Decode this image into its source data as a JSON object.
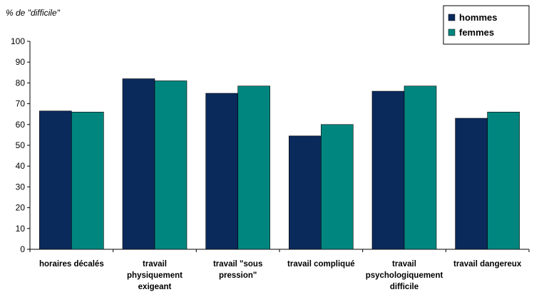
{
  "chart_data": {
    "type": "bar",
    "title": "% de \"difficile\"",
    "categories": [
      "horaires décalés",
      "travail physiquement exigeant",
      "travail \"sous pression\"",
      "travail compliqué",
      "travail psychologiquement difficile",
      "travail dangereux"
    ],
    "series": [
      {
        "name": "hommes",
        "color": "#0b2a5c",
        "values": [
          66.5,
          82,
          75,
          54.5,
          76,
          63
        ]
      },
      {
        "name": "femmes",
        "color": "#00867f",
        "values": [
          66,
          81,
          78.5,
          60,
          78.5,
          66
        ]
      }
    ],
    "ylim": [
      0,
      100
    ],
    "yticks": [
      0,
      10,
      20,
      30,
      40,
      50,
      60,
      70,
      80,
      90,
      100
    ],
    "grid": false,
    "legend": "top-right"
  }
}
